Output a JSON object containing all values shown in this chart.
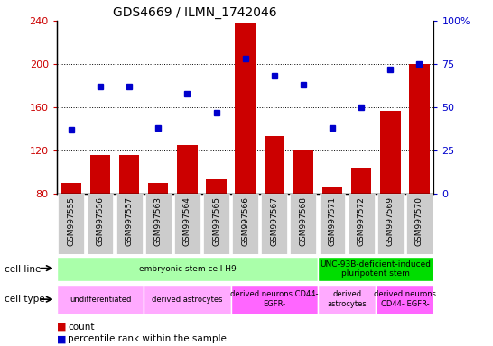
{
  "title": "GDS4669 / ILMN_1742046",
  "samples": [
    "GSM997555",
    "GSM997556",
    "GSM997557",
    "GSM997563",
    "GSM997564",
    "GSM997565",
    "GSM997566",
    "GSM997567",
    "GSM997568",
    "GSM997571",
    "GSM997572",
    "GSM997569",
    "GSM997570"
  ],
  "counts": [
    90,
    116,
    116,
    90,
    125,
    93,
    238,
    133,
    121,
    87,
    103,
    157,
    200
  ],
  "percentile": [
    37,
    62,
    62,
    38,
    58,
    47,
    78,
    68,
    63,
    38,
    50,
    72,
    75
  ],
  "ylim_left": [
    80,
    240
  ],
  "ylim_right": [
    0,
    100
  ],
  "yticks_left": [
    80,
    120,
    160,
    200,
    240
  ],
  "yticks_right": [
    0,
    25,
    50,
    75,
    100
  ],
  "bar_color": "#cc0000",
  "dot_color": "#0000cc",
  "cell_line_groups": [
    {
      "label": "embryonic stem cell H9",
      "start": 0,
      "end": 9,
      "color": "#aaffaa"
    },
    {
      "label": "UNC-93B-deficient-induced\npluripotent stem",
      "start": 9,
      "end": 13,
      "color": "#00dd00"
    }
  ],
  "cell_type_groups": [
    {
      "label": "undifferentiated",
      "start": 0,
      "end": 3,
      "color": "#ffaaff"
    },
    {
      "label": "derived astrocytes",
      "start": 3,
      "end": 6,
      "color": "#ffaaff"
    },
    {
      "label": "derived neurons CD44-\nEGFR-",
      "start": 6,
      "end": 9,
      "color": "#ff66ff"
    },
    {
      "label": "derived\nastrocytes",
      "start": 9,
      "end": 11,
      "color": "#ffaaff"
    },
    {
      "label": "derived neurons\nCD44- EGFR-",
      "start": 11,
      "end": 13,
      "color": "#ff66ff"
    }
  ],
  "background_color": "#ffffff",
  "grid_color": "#000000",
  "tick_color_left": "#cc0000",
  "tick_color_right": "#0000cc",
  "xticklabel_bg": "#cccccc"
}
